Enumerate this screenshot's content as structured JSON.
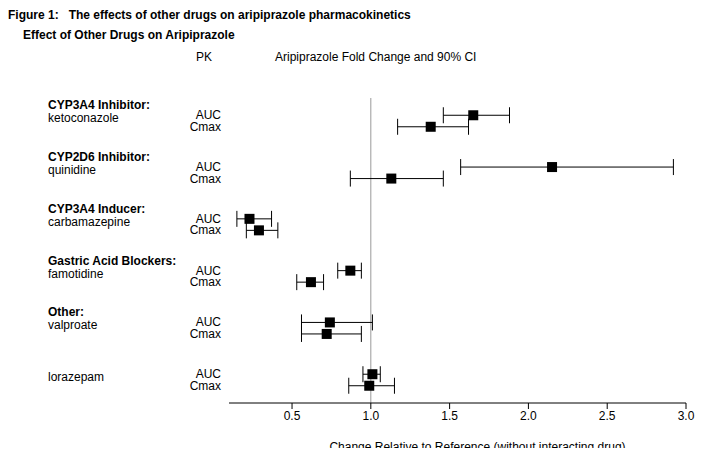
{
  "chart_data": {
    "type": "forest",
    "title": "Figure 1:   The effects of other drugs on aripiprazole pharmacokinetics",
    "subtitle": "Effect of Other Drugs on Aripiprazole",
    "row_header": "PK",
    "plot_header": "Aripiprazole Fold Change and 90% CI",
    "x_label": "Change Relative to Reference (without interacting drug)",
    "xlim": [
      0.1,
      3.0
    ],
    "xticks": [
      0.5,
      {
        "value": 1,
        "label": "1.0"
      },
      1.5,
      {
        "value": 2,
        "label": "2.0"
      },
      2.5,
      {
        "value": 3,
        "label": "3.0"
      }
    ],
    "reference_line": 1,
    "color": "#000000",
    "marker": "square",
    "groups": [
      {
        "group": "CYP3A4 Inhibitor:",
        "name": "ketoconazole",
        "rows": [
          {
            "label": "AUC",
            "value": 1.65,
            "ci_low": 1.46,
            "ci_high": 1.88
          },
          {
            "label": "Cmax",
            "value": 1.38,
            "ci_low": 1.17,
            "ci_high": 1.62
          }
        ]
      },
      {
        "group": "CYP2D6 Inhibitor:",
        "name": "quinidine",
        "rows": [
          {
            "label": "AUC",
            "value": 2.15,
            "ci_low": 1.57,
            "ci_high": 2.92
          },
          {
            "label": "Cmax",
            "value": 1.13,
            "ci_low": 0.87,
            "ci_high": 1.46
          }
        ]
      },
      {
        "group": "CYP3A4 Inducer:",
        "name": "carbamazepine",
        "rows": [
          {
            "label": "AUC",
            "value": 0.23,
            "ci_low": 0.15,
            "ci_high": 0.37
          },
          {
            "label": "Cmax",
            "value": 0.29,
            "ci_low": 0.21,
            "ci_high": 0.41
          }
        ]
      },
      {
        "group": "Gastric Acid Blockers:",
        "name": "famotidine",
        "rows": [
          {
            "label": "AUC",
            "value": 0.87,
            "ci_low": 0.79,
            "ci_high": 0.94
          },
          {
            "label": "Cmax",
            "value": 0.62,
            "ci_low": 0.53,
            "ci_high": 0.7
          }
        ]
      },
      {
        "group": "Other:",
        "name": "valproate",
        "rows": [
          {
            "label": "AUC",
            "value": 0.74,
            "ci_low": 0.56,
            "ci_high": 1.01
          },
          {
            "label": "Cmax",
            "value": 0.72,
            "ci_low": 0.56,
            "ci_high": 0.94
          }
        ]
      },
      {
        "name": "lorazepam",
        "rows": [
          {
            "label": "AUC",
            "value": 1.01,
            "ci_low": 0.95,
            "ci_high": 1.06
          },
          {
            "label": "Cmax",
            "value": 0.99,
            "ci_low": 0.86,
            "ci_high": 1.15
          }
        ]
      }
    ]
  }
}
